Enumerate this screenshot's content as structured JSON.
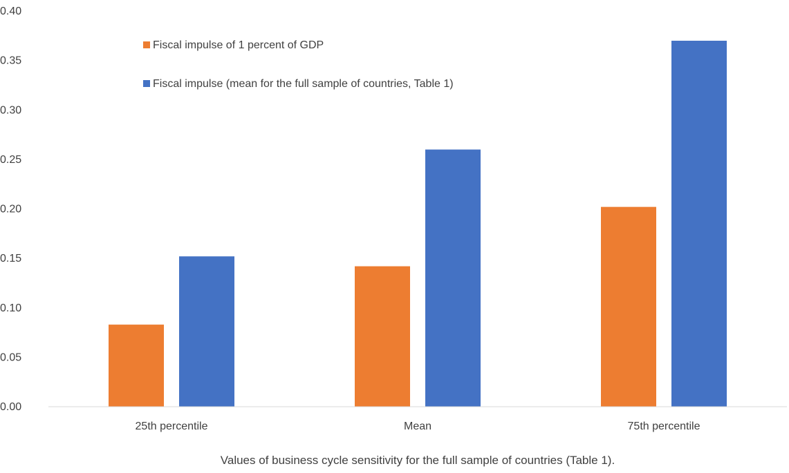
{
  "chart_data": {
    "type": "bar",
    "title": "",
    "xlabel": "Values of business cycle sensitivity for the full sample of countries (Table 1).",
    "ylabel": "",
    "categories": [
      "25th percentile",
      "Mean",
      "75th percentile"
    ],
    "series": [
      {
        "name": "Fiscal impulse of 1 percent of GDP",
        "color": "#ED7D31",
        "values": [
          0.083,
          0.142,
          0.202
        ]
      },
      {
        "name": "Fiscal impulse (mean for the full sample of countries, Table 1)",
        "color": "#4472C4",
        "values": [
          0.152,
          0.26,
          0.37
        ]
      }
    ],
    "ylim": [
      0,
      0.4
    ],
    "yticks": [
      "0.00",
      "0.05",
      "0.10",
      "0.15",
      "0.20",
      "0.25",
      "0.30",
      "0.35",
      "0.40"
    ],
    "grid": false,
    "legend_position": "top-left-inside"
  }
}
